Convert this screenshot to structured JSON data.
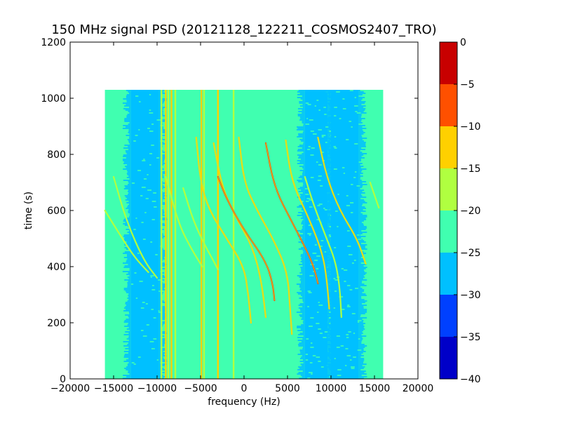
{
  "chart_data": {
    "type": "heatmap",
    "title": "150 MHz signal PSD (20121128_122211_COSMOS2407_TRO)",
    "xlabel": "frequency (Hz)",
    "ylabel": "time (s)",
    "xlim": [
      -20000,
      20000
    ],
    "ylim": [
      0,
      1200
    ],
    "x_ticks": [
      -20000,
      -15000,
      -10000,
      -5000,
      0,
      5000,
      10000,
      15000,
      20000
    ],
    "y_ticks": [
      0,
      200,
      400,
      600,
      800,
      1000,
      1200
    ],
    "data_extent": {
      "x": [
        -16000,
        16000
      ],
      "y": [
        0,
        1030
      ]
    },
    "background_level_dB": -22.5,
    "colorbar": {
      "min": -40,
      "max": 0,
      "ticks": [
        0,
        -5,
        -10,
        -15,
        -20,
        -25,
        -30,
        -35,
        -40
      ],
      "levels": [
        {
          "range": [
            -40,
            -35
          ],
          "color": "#0000c8"
        },
        {
          "range": [
            -35,
            -30
          ],
          "color": "#0040ff"
        },
        {
          "range": [
            -30,
            -25
          ],
          "color": "#00c0ff"
        },
        {
          "range": [
            -25,
            -20
          ],
          "color": "#40ffb0"
        },
        {
          "range": [
            -20,
            -15
          ],
          "color": "#b0ff40"
        },
        {
          "range": [
            -15,
            -10
          ],
          "color": "#ffd000"
        },
        {
          "range": [
            -10,
            -5
          ],
          "color": "#ff5000"
        },
        {
          "range": [
            -5,
            0
          ],
          "color": "#c80000"
        }
      ]
    },
    "bands": [
      {
        "x": [
          -13000,
          -9800
        ],
        "level_dB": -27.5
      },
      {
        "x": [
          7000,
          9600
        ],
        "level_dB": -27.5
      },
      {
        "x": [
          10200,
          13200
        ],
        "level_dB": -27.5
      }
    ],
    "vertical_lines": [
      {
        "x": -9500,
        "level_dB": -17.5
      },
      {
        "x": -9000,
        "level_dB": -12.5
      },
      {
        "x": -8700,
        "level_dB": -17.5
      },
      {
        "x": -8350,
        "level_dB": -12.5
      },
      {
        "x": -7900,
        "level_dB": -17.5
      },
      {
        "x": -4900,
        "level_dB": -12.5
      },
      {
        "x": -4600,
        "level_dB": -17.5
      },
      {
        "x": -3000,
        "level_dB": -12.5
      },
      {
        "x": -1200,
        "level_dB": -17.5
      },
      {
        "x": 10100,
        "level_dB": -27.5
      }
    ],
    "series": [
      {
        "level_dB": -17.5,
        "points": [
          [
            -16000,
            600
          ],
          [
            -14000,
            500
          ],
          [
            -12500,
            430
          ],
          [
            -11000,
            380
          ]
        ]
      },
      {
        "level_dB": -17.5,
        "points": [
          [
            -15000,
            720
          ],
          [
            -13500,
            560
          ],
          [
            -11500,
            420
          ],
          [
            -10000,
            360
          ]
        ]
      },
      {
        "level_dB": -17.5,
        "points": [
          [
            -9000,
            720
          ],
          [
            -7500,
            550
          ],
          [
            -6000,
            460
          ],
          [
            -4800,
            400
          ]
        ]
      },
      {
        "level_dB": -17.5,
        "points": [
          [
            -7000,
            680
          ],
          [
            -5800,
            560
          ],
          [
            -4400,
            470
          ],
          [
            -3500,
            420
          ],
          [
            -3000,
            390
          ]
        ]
      },
      {
        "level_dB": -12.5,
        "points": [
          [
            -5500,
            860
          ],
          [
            -5000,
            700
          ],
          [
            -4000,
            600
          ],
          [
            -2000,
            500
          ],
          [
            0,
            400
          ],
          [
            500,
            300
          ],
          [
            800,
            200
          ]
        ]
      },
      {
        "level_dB": -12.5,
        "points": [
          [
            -3500,
            840
          ],
          [
            -2500,
            680
          ],
          [
            -1000,
            580
          ],
          [
            1000,
            470
          ],
          [
            2000,
            350
          ],
          [
            2500,
            220
          ]
        ]
      },
      {
        "level_dB": -7.5,
        "points": [
          [
            -3000,
            720
          ],
          [
            -2000,
            640
          ],
          [
            0,
            530
          ],
          [
            2500,
            420
          ],
          [
            3300,
            340
          ],
          [
            3500,
            280
          ]
        ]
      },
      {
        "level_dB": -12.5,
        "points": [
          [
            -600,
            860
          ],
          [
            0,
            700
          ],
          [
            1500,
            600
          ],
          [
            3500,
            490
          ],
          [
            5000,
            380
          ],
          [
            5300,
            250
          ],
          [
            5500,
            160
          ]
        ]
      },
      {
        "level_dB": -7.5,
        "points": [
          [
            2500,
            840
          ],
          [
            3500,
            680
          ],
          [
            5500,
            560
          ],
          [
            7500,
            440
          ],
          [
            8200,
            380
          ],
          [
            8500,
            340
          ]
        ]
      },
      {
        "level_dB": -12.5,
        "points": [
          [
            4800,
            850
          ],
          [
            5500,
            700
          ],
          [
            7500,
            570
          ],
          [
            9000,
            450
          ],
          [
            9500,
            360
          ],
          [
            9800,
            250
          ]
        ]
      },
      {
        "level_dB": -17.5,
        "points": [
          [
            7000,
            720
          ],
          [
            8000,
            620
          ],
          [
            9500,
            500
          ],
          [
            10500,
            420
          ],
          [
            11000,
            330
          ],
          [
            11200,
            220
          ]
        ]
      },
      {
        "level_dB": -12.5,
        "points": [
          [
            8500,
            860
          ],
          [
            9500,
            720
          ],
          [
            11000,
            600
          ],
          [
            13000,
            500
          ],
          [
            14000,
            410
          ]
        ]
      },
      {
        "level_dB": -17.5,
        "points": [
          [
            14500,
            700
          ],
          [
            15500,
            610
          ]
        ]
      }
    ]
  }
}
